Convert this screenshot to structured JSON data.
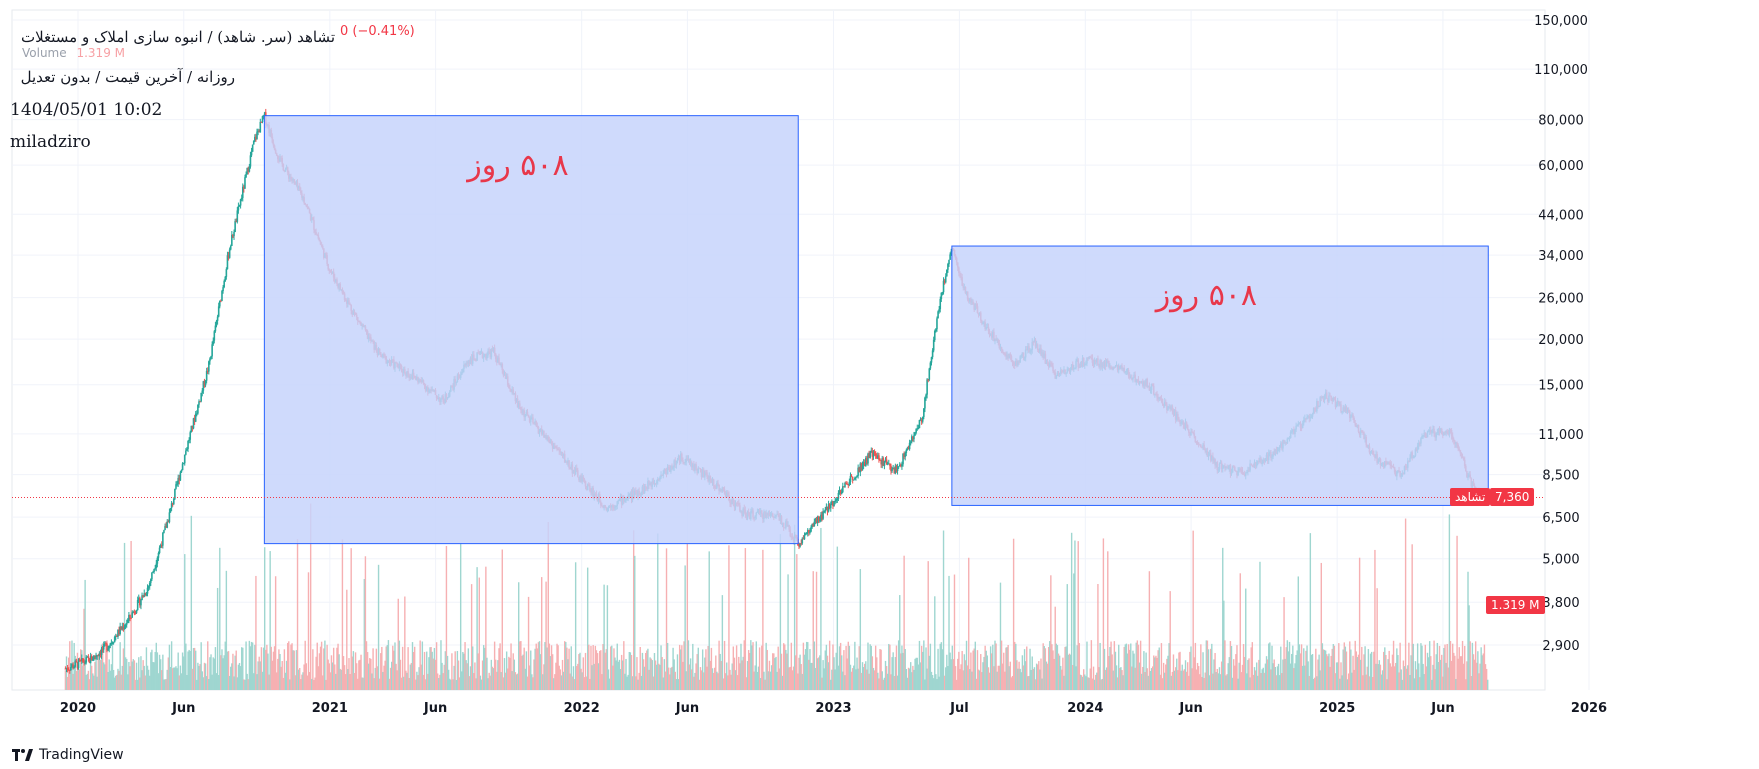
{
  "header": {
    "symbol_title": "تشاهد (سر. شاهد) / انبوه سازی املاک و مستغلات",
    "change_text": "0 (−0.41%)",
    "volume_label": "Volume",
    "volume_value": "1.319 M",
    "subtitle": "روزانه / آخرین قیمت / بدون تعدیل",
    "datetime": "1404/05/01 10:02",
    "author": "miladziro"
  },
  "annotations": {
    "box1_label": "۵۰۸ روز",
    "box2_label": "۵۰۸ روز"
  },
  "badges": {
    "price_symbol": "تشاهد",
    "price_value": "7,360",
    "volume_value": "1.319 M"
  },
  "footer": {
    "brand": "TradingView"
  },
  "colors": {
    "up": "#26a69a",
    "down": "#ef5350",
    "box_fill": "#c7d3fb",
    "box_stroke": "#2962ff",
    "annotation": "#e8374a",
    "price_line": "#f23645"
  },
  "chart_data": {
    "type": "candlestick",
    "scale": "log",
    "y_ticks": [
      150000,
      110000,
      80000,
      60000,
      44000,
      34000,
      26000,
      20000,
      15000,
      11000,
      8500,
      6500,
      5000,
      3800,
      2900
    ],
    "y_tick_labels": [
      "150,000",
      "110,000",
      "80,000",
      "60,000",
      "44,000",
      "34,000",
      "26,000",
      "20,000",
      "15,000",
      "11,000",
      "8,500",
      "6,500",
      "5,000",
      "3,800",
      "2,900"
    ],
    "x_tick_labels": [
      "2020",
      "Jun",
      "2021",
      "Jun",
      "2022",
      "Jun",
      "2023",
      "Jul",
      "2024",
      "Jun",
      "2025",
      "Jun",
      "2026"
    ],
    "x_tick_dates": [
      2020.0,
      2020.42,
      2021.0,
      2021.42,
      2022.0,
      2022.42,
      2023.0,
      2023.5,
      2024.0,
      2024.42,
      2025.0,
      2025.42,
      2026.0
    ],
    "last_price": 7360,
    "price_path": [
      [
        2019.95,
        2500
      ],
      [
        2020.05,
        2650
      ],
      [
        2020.12,
        2900
      ],
      [
        2020.2,
        3400
      ],
      [
        2020.28,
        4200
      ],
      [
        2020.36,
        6500
      ],
      [
        2020.43,
        10000
      ],
      [
        2020.52,
        17000
      ],
      [
        2020.6,
        35000
      ],
      [
        2020.7,
        70000
      ],
      [
        2020.74,
        82000
      ],
      [
        2020.8,
        62000
      ],
      [
        2020.9,
        48000
      ],
      [
        2021.0,
        31000
      ],
      [
        2021.12,
        22000
      ],
      [
        2021.2,
        18000
      ],
      [
        2021.35,
        15500
      ],
      [
        2021.45,
        13500
      ],
      [
        2021.55,
        17500
      ],
      [
        2021.65,
        18500
      ],
      [
        2021.75,
        13000
      ],
      [
        2021.9,
        10000
      ],
      [
        2022.0,
        8200
      ],
      [
        2022.1,
        6900
      ],
      [
        2022.25,
        7800
      ],
      [
        2022.4,
        9500
      ],
      [
        2022.55,
        7800
      ],
      [
        2022.65,
        6600
      ],
      [
        2022.78,
        6600
      ],
      [
        2022.86,
        5500
      ],
      [
        2022.95,
        6500
      ],
      [
        2023.05,
        8000
      ],
      [
        2023.15,
        9700
      ],
      [
        2023.25,
        8700
      ],
      [
        2023.35,
        12000
      ],
      [
        2023.42,
        25000
      ],
      [
        2023.47,
        36000
      ],
      [
        2023.52,
        27000
      ],
      [
        2023.62,
        21000
      ],
      [
        2023.72,
        17000
      ],
      [
        2023.8,
        19500
      ],
      [
        2023.88,
        16000
      ],
      [
        2024.0,
        17500
      ],
      [
        2024.1,
        17000
      ],
      [
        2024.25,
        15000
      ],
      [
        2024.4,
        11500
      ],
      [
        2024.52,
        9000
      ],
      [
        2024.62,
        8600
      ],
      [
        2024.72,
        9400
      ],
      [
        2024.85,
        11500
      ],
      [
        2024.95,
        14000
      ],
      [
        2025.05,
        12500
      ],
      [
        2025.15,
        9500
      ],
      [
        2025.25,
        8500
      ],
      [
        2025.35,
        11000
      ],
      [
        2025.45,
        11200
      ],
      [
        2025.55,
        7500
      ],
      [
        2025.6,
        7360
      ]
    ],
    "highlight_boxes": [
      {
        "x_start": 2020.74,
        "x_end": 2022.86,
        "y_top": 82000,
        "y_bottom": 5500
      },
      {
        "x_start": 2023.47,
        "x_end": 2025.6,
        "y_top": 36000,
        "y_bottom": 7000
      }
    ]
  }
}
